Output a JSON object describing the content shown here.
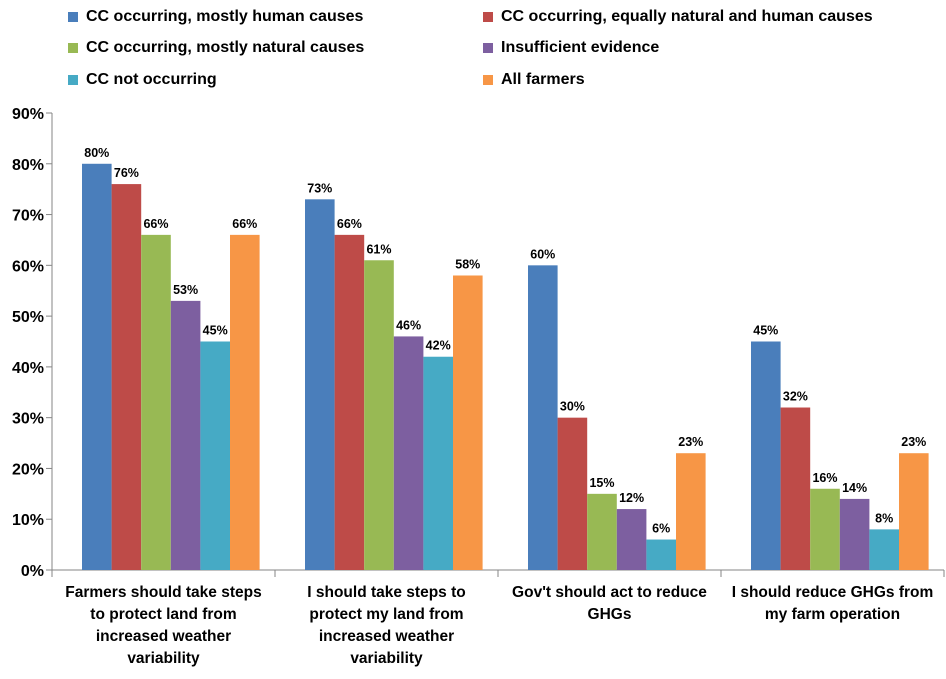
{
  "chart_data": {
    "type": "bar",
    "categories": [
      "Farmers should take steps to protect land from increased weather variability",
      "I should take steps to protect my land from increased weather variability",
      "Gov't should act to reduce GHGs",
      "I should reduce GHGs from my farm operation"
    ],
    "category_lines": [
      [
        "Farmers should take steps",
        "to protect land from",
        "increased weather",
        "variability"
      ],
      [
        "I should take steps to",
        "protect my land from",
        "increased weather",
        "variability"
      ],
      [
        "Gov't should act to reduce",
        "GHGs"
      ],
      [
        "I should reduce GHGs from",
        "my farm operation"
      ]
    ],
    "series": [
      {
        "name": "CC occurring, mostly human causes",
        "color": "#4a7ebb",
        "values": [
          80,
          73,
          60,
          45
        ],
        "labels": [
          "80%",
          "73%",
          "60%",
          "45%"
        ]
      },
      {
        "name": "CC occurring, equally  natural and human causes",
        "color": "#be4b48",
        "values": [
          76,
          66,
          30,
          32
        ],
        "labels": [
          "76%",
          "66%",
          "30%",
          "32%"
        ]
      },
      {
        "name": "CC occurring, mostly natural causes",
        "color": "#98b954",
        "values": [
          66,
          61,
          15,
          16
        ],
        "labels": [
          "66%",
          "61%",
          "15%",
          "16%"
        ]
      },
      {
        "name": "Insufficient evidence",
        "color": "#7d5fa0",
        "values": [
          53,
          46,
          12,
          14
        ],
        "labels": [
          "53%",
          "46%",
          "12%",
          "14%"
        ]
      },
      {
        "name": "CC not occurring",
        "color": "#46aac5",
        "values": [
          45,
          42,
          6,
          8
        ],
        "labels": [
          "45%",
          "42%",
          "6%",
          "8%"
        ]
      },
      {
        "name": "All farmers",
        "color": "#f79646",
        "values": [
          66,
          58,
          23,
          23
        ],
        "labels": [
          "66%",
          "58%",
          "23%",
          "23%"
        ]
      }
    ],
    "ylim": [
      0,
      90
    ],
    "yticks": [
      "0%",
      "10%",
      "20%",
      "30%",
      "40%",
      "50%",
      "60%",
      "70%",
      "80%",
      "90%"
    ],
    "grid": false,
    "legend_position": "top"
  }
}
